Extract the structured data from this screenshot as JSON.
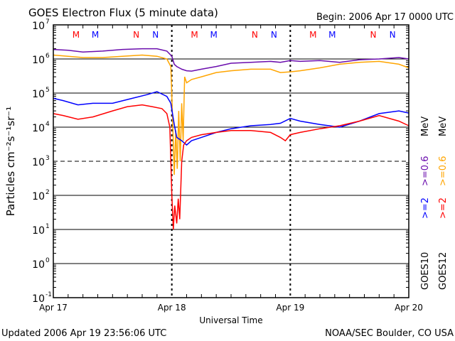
{
  "chart_data": {
    "type": "line",
    "title": "GOES Electron Flux (5 minute data)",
    "begin_label": "Begin: 2006 Apr 17 0000 UTC",
    "xlabel": "Universal Time",
    "ylabel": "Particles cm⁻²s⁻¹sr⁻¹",
    "yscale": "log",
    "ylim": [
      0.1,
      10000000
    ],
    "xlim_hours": [
      0,
      72
    ],
    "x_ticks": [
      {
        "h": 0,
        "label": "Apr 17"
      },
      {
        "h": 24,
        "label": "Apr 18"
      },
      {
        "h": 48,
        "label": "Apr 19"
      },
      {
        "h": 72,
        "label": "Apr 20"
      }
    ],
    "y_ticks": [
      {
        "exp": 7,
        "label": "10",
        "sup": "7"
      },
      {
        "exp": 6,
        "label": "10",
        "sup": "6"
      },
      {
        "exp": 5,
        "label": "10",
        "sup": "5"
      },
      {
        "exp": 4,
        "label": "10",
        "sup": "4"
      },
      {
        "exp": 3,
        "label": "10",
        "sup": "3"
      },
      {
        "exp": 2,
        "label": "10",
        "sup": "2"
      },
      {
        "exp": 1,
        "label": "10",
        "sup": "1"
      },
      {
        "exp": 0,
        "label": "10",
        "sup": "0"
      },
      {
        "exp": -1,
        "label": "10",
        "sup": "-1"
      }
    ],
    "threshold_line": 1000,
    "markers": [
      {
        "h": 4.6,
        "label": "M",
        "color": "#ff0000"
      },
      {
        "h": 8.5,
        "label": "M",
        "color": "#0000ff"
      },
      {
        "h": 16.8,
        "label": "N",
        "color": "#ff0000"
      },
      {
        "h": 20.7,
        "label": "N",
        "color": "#0000ff"
      },
      {
        "h": 28.6,
        "label": "M",
        "color": "#ff0000"
      },
      {
        "h": 32.5,
        "label": "M",
        "color": "#0000ff"
      },
      {
        "h": 40.8,
        "label": "N",
        "color": "#ff0000"
      },
      {
        "h": 44.7,
        "label": "N",
        "color": "#0000ff"
      },
      {
        "h": 52.6,
        "label": "M",
        "color": "#ff0000"
      },
      {
        "h": 56.5,
        "label": "M",
        "color": "#0000ff"
      },
      {
        "h": 64.8,
        "label": "N",
        "color": "#ff0000"
      },
      {
        "h": 68.7,
        "label": "N",
        "color": "#0000ff"
      }
    ],
    "legend": {
      "goes10": {
        "label": "GOES10",
        "a": ">=2",
        "b": ">=0.6",
        "unit": "MeV"
      },
      "goes12": {
        "label": "GOES12",
        "a": ">=2",
        "b": ">=0.6",
        "unit": "MeV"
      }
    },
    "series": [
      {
        "name": "GOES10 >=0.6 MeV",
        "color": "#6a0dad",
        "x": [
          0,
          3,
          6,
          10,
          14,
          18,
          21,
          23,
          24,
          24.5,
          25,
          26,
          27,
          28,
          30,
          33,
          36,
          40,
          44,
          46,
          48,
          50,
          54,
          58,
          62,
          66,
          70,
          72
        ],
        "y": [
          1900000.0,
          1800000.0,
          1600000.0,
          1700000.0,
          1900000.0,
          2000000.0,
          2000000.0,
          1700000.0,
          1200000.0,
          700000.0,
          600000.0,
          500000.0,
          450000.0,
          440000.0,
          500000.0,
          600000.0,
          750000.0,
          800000.0,
          850000.0,
          800000.0,
          900000.0,
          850000.0,
          900000.0,
          800000.0,
          950000.0,
          1000000.0,
          1100000.0,
          1000000.0
        ]
      },
      {
        "name": "GOES12 >=0.6 MeV",
        "color": "#ffa500",
        "x": [
          0,
          3,
          6,
          10,
          14,
          18,
          21,
          23,
          23.8,
          24.2,
          24.5,
          24.8,
          25.1,
          25.4,
          25.7,
          26,
          26.3,
          26.6,
          27,
          28,
          30,
          33,
          36,
          40,
          44,
          46,
          48,
          50,
          54,
          58,
          62,
          66,
          70,
          72
        ],
        "y": [
          1300000.0,
          1200000.0,
          1100000.0,
          1100000.0,
          1200000.0,
          1300000.0,
          1200000.0,
          1000000.0,
          600000.0,
          10000.0,
          400,
          8000.0,
          600,
          30000.0,
          1000.0,
          50000.0,
          4000.0,
          300000.0,
          200000.0,
          250000.0,
          300000.0,
          400000.0,
          450000.0,
          500000.0,
          500000.0,
          400000.0,
          420000.0,
          450000.0,
          550000.0,
          700000.0,
          800000.0,
          850000.0,
          700000.0,
          550000.0
        ]
      },
      {
        "name": "GOES10 >=2 MeV",
        "color": "#0000ff",
        "x": [
          0,
          2,
          5,
          8,
          12,
          16,
          19,
          21,
          23,
          23.8,
          24.5,
          25,
          26,
          27,
          28,
          30,
          33,
          36,
          40,
          44,
          46,
          48,
          50,
          54,
          58,
          62,
          66,
          70,
          72
        ],
        "y": [
          70000.0,
          60000.0,
          45000.0,
          50000.0,
          50000.0,
          70000.0,
          90000.0,
          110000.0,
          80000.0,
          50000.0,
          12000.0,
          5000.0,
          4000.0,
          3000.0,
          4000.0,
          5000.0,
          7000.0,
          9000.0,
          11000.0,
          12000.0,
          13000.0,
          18000.0,
          15000.0,
          12000.0,
          10000.0,
          15000.0,
          25000.0,
          30000.0,
          26000.0
        ]
      },
      {
        "name": "GOES12 >=2 MeV",
        "color": "#ff0000",
        "x": [
          0,
          2,
          5,
          8,
          12,
          15,
          18,
          20,
          22,
          23,
          23.6,
          24,
          24.3,
          24.6,
          25,
          25.3,
          25.6,
          26,
          26.4,
          27,
          28,
          30,
          33,
          36,
          40,
          44,
          46,
          47,
          48,
          50,
          54,
          58,
          62,
          66,
          70,
          72
        ],
        "y": [
          25000.0,
          22000.0,
          17000.0,
          20000.0,
          30000.0,
          40000.0,
          45000.0,
          40000.0,
          35000.0,
          25000.0,
          10000.0,
          100,
          10,
          50,
          15,
          80,
          20,
          1000.0,
          3000.0,
          4000.0,
          5000.0,
          6000.0,
          7000.0,
          8000.0,
          8000.0,
          7000.0,
          5000.0,
          4000.0,
          6000.0,
          7000.0,
          9000.0,
          11000.0,
          15000.0,
          22000.0,
          15000.0,
          11000.0
        ]
      }
    ]
  },
  "footer": {
    "updated": "Updated 2006 Apr 19 23:56:06 UTC",
    "credit": "NOAA/SEC Boulder, CO USA"
  }
}
